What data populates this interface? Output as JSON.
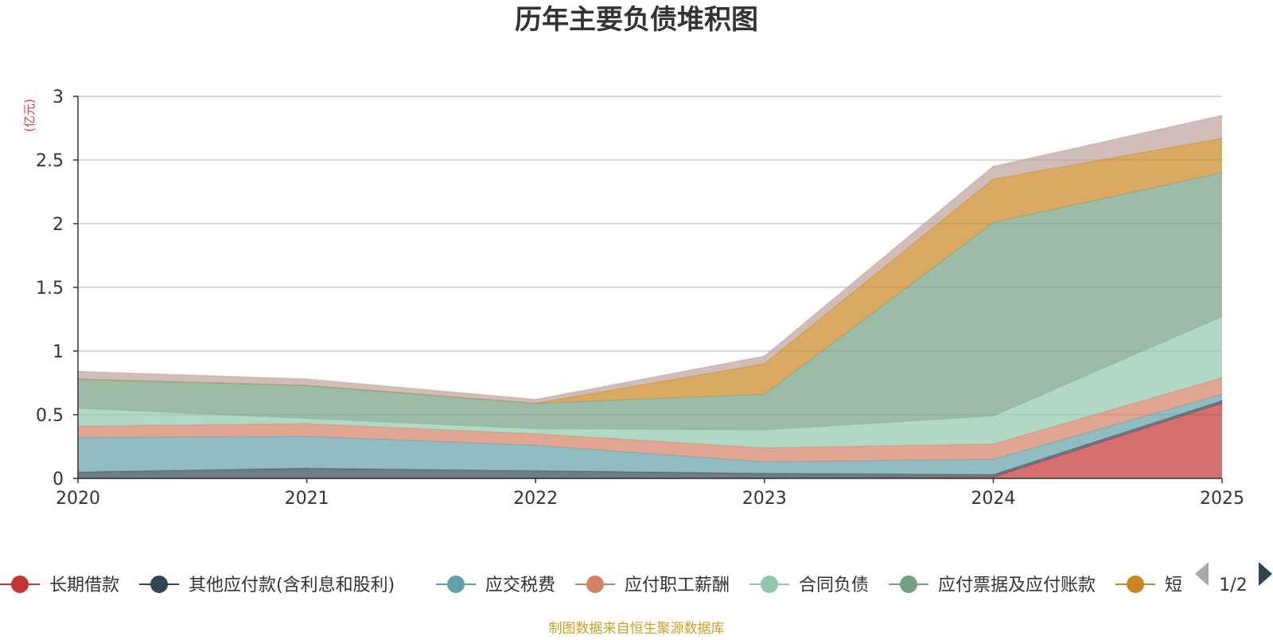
{
  "chart_data": {
    "type": "area",
    "title": "历年主要负债堆积图",
    "ylabel": "(亿元)",
    "xlabel": "",
    "stacked": true,
    "x": [
      "2020",
      "2021",
      "2022",
      "2023",
      "2024",
      "2025"
    ],
    "ylim": [
      0,
      3
    ],
    "yticks": [
      "0",
      "0.5",
      "1",
      "1.5",
      "2",
      "2.5",
      "3"
    ],
    "grid": true,
    "legend_position": "bottom",
    "series": [
      {
        "name": "长期借款",
        "color": "#c23531",
        "values": [
          0,
          0,
          0,
          0,
          0.01,
          0.59
        ]
      },
      {
        "name": "其他应付款(含利息和股利)",
        "color": "#2f4554",
        "values": [
          0.05,
          0.08,
          0.06,
          0.04,
          0.02,
          0.02
        ]
      },
      {
        "name": "应交税费",
        "color": "#61a0a8",
        "values": [
          0.27,
          0.25,
          0.2,
          0.09,
          0.12,
          0.05
        ]
      },
      {
        "name": "应付职工薪酬",
        "color": "#d48265",
        "values": [
          0.09,
          0.1,
          0.09,
          0.11,
          0.12,
          0.13
        ]
      },
      {
        "name": "合同负债",
        "color": "#91c7ae",
        "values": [
          0.14,
          0.04,
          0.04,
          0.14,
          0.22,
          0.48
        ]
      },
      {
        "name": "应付票据及应付账款",
        "color": "#749f83",
        "values": [
          0.23,
          0.26,
          0.2,
          0.28,
          1.52,
          1.13
        ]
      },
      {
        "name": "短期借款",
        "color": "#ca8622",
        "values": [
          0,
          0,
          0,
          0.24,
          0.34,
          0.27
        ]
      },
      {
        "name": "",
        "color": "#bda29a",
        "values": [
          0.06,
          0.05,
          0.03,
          0.06,
          0.1,
          0.18
        ]
      }
    ]
  },
  "legend": {
    "items": [
      {
        "label": "长期借款",
        "color": "#c23531"
      },
      {
        "label": "其他应付款(含利息和股利)",
        "color": "#2f4554"
      },
      {
        "label": "应交税费",
        "color": "#61a0a8"
      },
      {
        "label": "应付职工薪酬",
        "color": "#d48265"
      },
      {
        "label": "合同负债",
        "color": "#91c7ae"
      },
      {
        "label": "应付票据及应付账款",
        "color": "#749f83"
      },
      {
        "label": "短",
        "color": "#ca8622"
      }
    ],
    "page_indicator": "1/2"
  },
  "footer": {
    "source": "制图数据来自恒生聚源数据库"
  }
}
